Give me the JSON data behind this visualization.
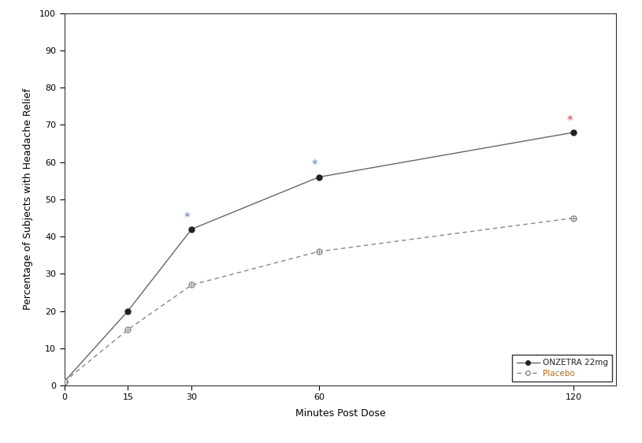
{
  "onzetra_x": [
    0,
    15,
    30,
    60,
    120
  ],
  "onzetra_y": [
    1,
    20,
    42,
    56,
    68
  ],
  "placebo_x": [
    0,
    15,
    30,
    60,
    120
  ],
  "placebo_y": [
    1,
    15,
    27,
    36,
    45
  ],
  "onzetra_color": "#222222",
  "placebo_color": "#888888",
  "line_color": "#666666",
  "star_color": "#4488cc",
  "star_color_last": "#cc4444",
  "xlabel": "Minutes Post Dose",
  "ylabel": "Percentage of Subjects with Headache Relief",
  "ylim": [
    0,
    100
  ],
  "xlim": [
    0,
    130
  ],
  "yticks": [
    0,
    10,
    20,
    30,
    40,
    50,
    60,
    70,
    80,
    90,
    100
  ],
  "xticks": [
    0,
    15,
    30,
    60,
    120
  ],
  "legend_label_onzetra": "ONZETRA 22mg",
  "legend_label_placebo": "Placebo",
  "background_color": "#ffffff",
  "axis_fontsize": 9,
  "tick_fontsize": 8,
  "legend_fontsize": 7.5
}
